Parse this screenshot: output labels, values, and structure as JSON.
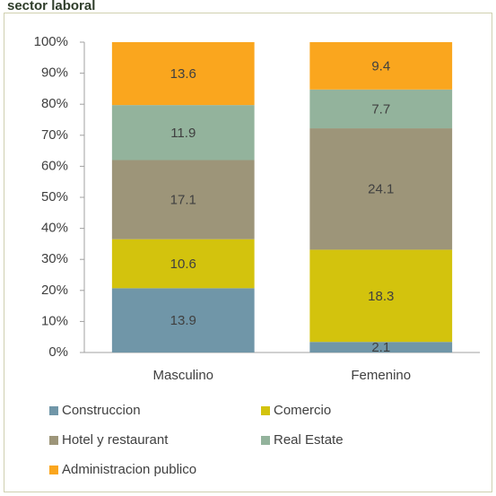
{
  "chart_data": {
    "type": "bar",
    "stacked": "percent",
    "title": "sector laboral",
    "categories": [
      "Masculino",
      "Femenino"
    ],
    "series": [
      {
        "name": "Construccion",
        "color": "#7096a8",
        "values": [
          13.9,
          2.1
        ]
      },
      {
        "name": "Comercio",
        "color": "#d3c30d",
        "values": [
          10.6,
          18.3
        ]
      },
      {
        "name": "Hotel y restaurant",
        "color": "#9d9579",
        "values": [
          17.1,
          24.1
        ]
      },
      {
        "name": "Real Estate",
        "color": "#93b39c",
        "values": [
          11.9,
          7.7
        ]
      },
      {
        "name": "Administracion publico",
        "color": "#faa61e",
        "values": [
          13.6,
          9.4
        ]
      }
    ],
    "ylim": [
      0,
      100
    ],
    "yticks": [
      {
        "value": 0,
        "label": "0%"
      },
      {
        "value": 10,
        "label": "10%"
      },
      {
        "value": 20,
        "label": "20%"
      },
      {
        "value": 30,
        "label": "30%"
      },
      {
        "value": 40,
        "label": "40%"
      },
      {
        "value": 50,
        "label": "50%"
      },
      {
        "value": 60,
        "label": "60%"
      },
      {
        "value": 70,
        "label": "70%"
      },
      {
        "value": 80,
        "label": "80%"
      },
      {
        "value": 90,
        "label": "90%"
      },
      {
        "value": 100,
        "label": "100%"
      }
    ]
  }
}
